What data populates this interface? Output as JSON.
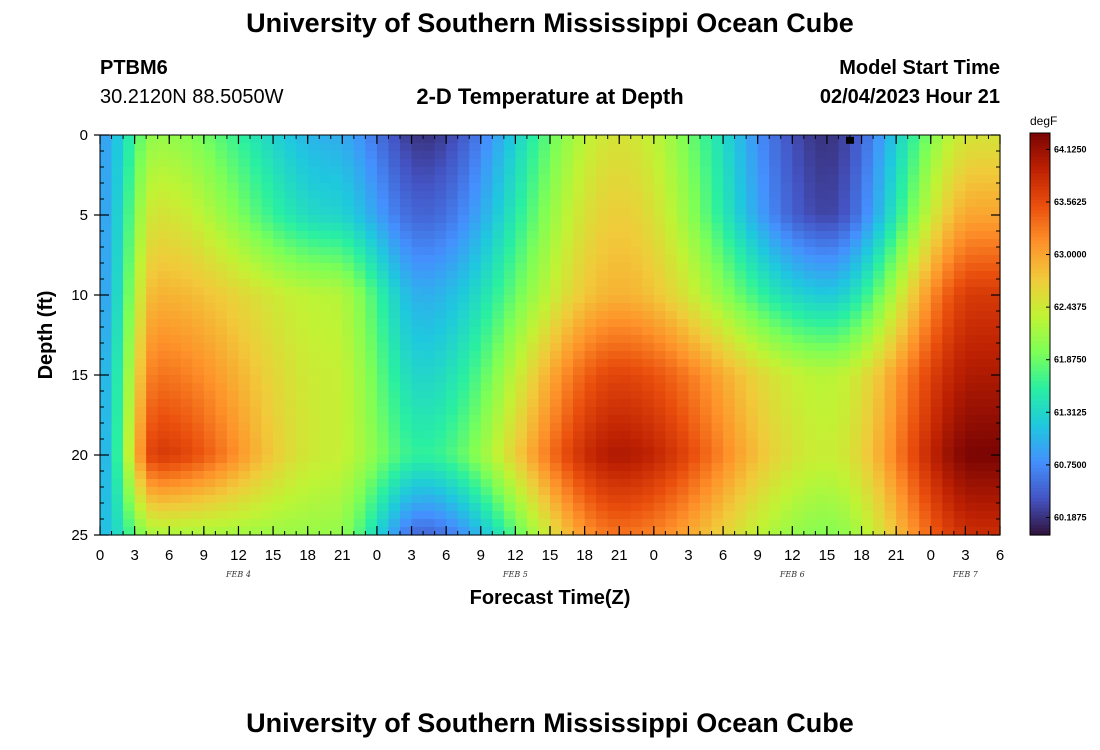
{
  "page": {
    "title_top": "University of Southern Mississippi Ocean Cube",
    "title_bottom": "University of Southern Mississippi Ocean Cube",
    "station": "PTBM6",
    "location": "30.2120N  88.5050W",
    "subtitle": "2-D Temperature at Depth",
    "model_start_label": "Model Start Time",
    "model_start_value": "02/04/2023 Hour 21"
  },
  "colors": {
    "scale": [
      "#30123b",
      "#4454c4",
      "#4490fe",
      "#1fc8de",
      "#29efa2",
      "#7dff56",
      "#c1f334",
      "#f1ca3a",
      "#fe922a",
      "#ea4f0d",
      "#be2102",
      "#7a0403"
    ]
  },
  "chart_data": {
    "type": "heatmap",
    "title": "2-D Temperature at Depth",
    "xlabel": "Forecast Time(Z)",
    "ylabel": "Depth (ft)",
    "x_tick_labels": [
      "0",
      "3",
      "6",
      "9",
      "12",
      "15",
      "18",
      "21",
      "0",
      "3",
      "6",
      "9",
      "12",
      "15",
      "18",
      "21",
      "0",
      "3",
      "6",
      "9",
      "12",
      "15",
      "18",
      "21",
      "0",
      "3",
      "6"
    ],
    "x_tick_hours": [
      0,
      3,
      6,
      9,
      12,
      15,
      18,
      21,
      24,
      27,
      30,
      33,
      36,
      39,
      42,
      45,
      48,
      51,
      54,
      57,
      60,
      63,
      66,
      69,
      72,
      75,
      78
    ],
    "x_range_hours": [
      0,
      78
    ],
    "day_labels": [
      {
        "label": "FEB 4",
        "hour": 12
      },
      {
        "label": "FEB 5",
        "hour": 36
      },
      {
        "label": "FEB 6",
        "hour": 60
      },
      {
        "label": "FEB 7",
        "hour": 75
      }
    ],
    "y_range": [
      0,
      25
    ],
    "y_inverted": true,
    "y_ticks": [
      0,
      5,
      10,
      15,
      20,
      25
    ],
    "y_tick_labels": [
      "0",
      "5",
      "10",
      "15",
      "20",
      "25"
    ],
    "colorbar": {
      "unit": "degF",
      "min": 60.0,
      "max": 64.3,
      "labels": [
        "64.1250",
        "63.5625",
        "63.0000",
        "62.4375",
        "61.8750",
        "61.3125",
        "60.7500",
        "60.1875"
      ],
      "label_values": [
        64.125,
        63.5625,
        63.0,
        62.4375,
        61.875,
        61.3125,
        60.75,
        60.1875
      ]
    },
    "marker": {
      "hour": 65,
      "depth": 0.3
    },
    "grid_resolution": {
      "time_step_hours": 1,
      "depth_step_ft": 0.5
    },
    "temperature_profiles_degF": {
      "depths_ft": [
        0,
        5,
        10,
        15,
        20,
        25
      ],
      "hour_0": [
        60.9,
        60.9,
        60.9,
        61.0,
        61.0,
        61.1
      ],
      "hour_5": [
        62.1,
        62.5,
        62.9,
        63.3,
        63.7,
        62.2
      ],
      "hour_20": [
        61.0,
        61.3,
        62.3,
        62.4,
        62.4,
        62.1
      ],
      "hour_28": [
        60.2,
        60.5,
        61.0,
        61.3,
        61.6,
        60.5
      ],
      "hour_45": [
        62.5,
        62.7,
        62.9,
        63.6,
        64.0,
        63.3
      ],
      "hour_63": [
        60.2,
        60.3,
        61.2,
        62.3,
        62.4,
        62.0
      ],
      "hour_76": [
        62.5,
        63.0,
        63.7,
        64.0,
        64.3,
        63.8
      ]
    }
  }
}
